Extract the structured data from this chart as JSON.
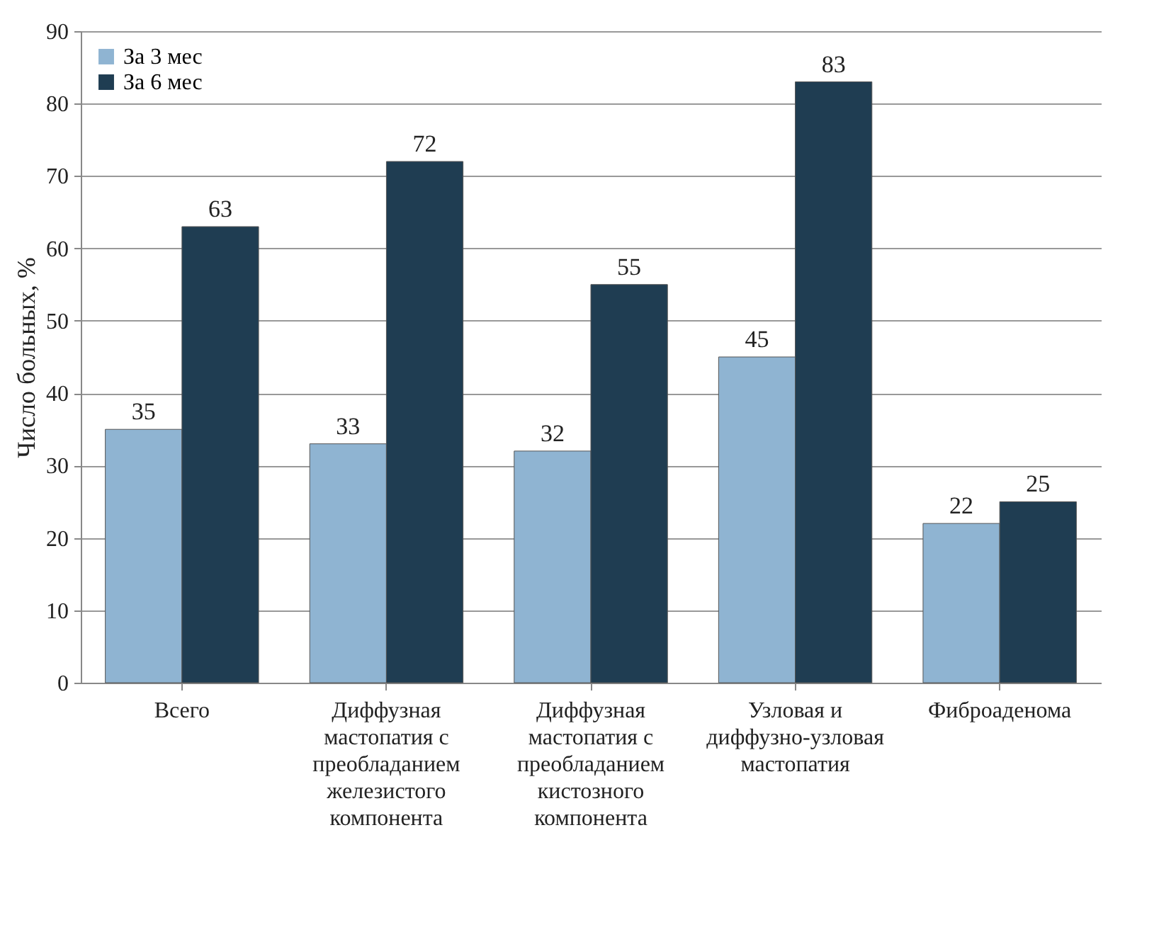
{
  "chart_data": {
    "type": "bar",
    "ylabel": "Число больных, %",
    "categories": [
      "Всего",
      "Диффузная мастопатия с преобладанием железистого компонента",
      "Диффузная мастопатия с преобладанием кистозного компонента",
      "Узловая и диффузно-узловая мастопатия",
      "Фиброаденома"
    ],
    "series": [
      {
        "name": "За 3 мес",
        "color": "#8fb4d2",
        "values": [
          35,
          33,
          32,
          45,
          22
        ]
      },
      {
        "name": "За 6 мес",
        "color": "#1f3d52",
        "values": [
          63,
          72,
          55,
          83,
          25
        ]
      }
    ],
    "ylim": [
      0,
      90
    ],
    "yticks": [
      0,
      10,
      20,
      30,
      40,
      50,
      60,
      70,
      80,
      90
    ],
    "grid": "y",
    "legend": "top left",
    "data_labels": true
  }
}
